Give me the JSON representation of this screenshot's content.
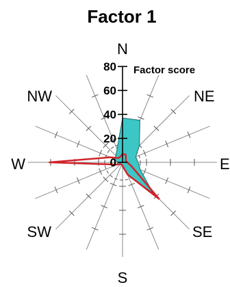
{
  "chart_data": {
    "type": "radar",
    "title": "Factor 1",
    "ylabel": "Factor score",
    "ylim": [
      0,
      80
    ],
    "radial_ticks": [
      80,
      60,
      40,
      20,
      0
    ],
    "directions": [
      "N",
      "NNE",
      "NE",
      "ENE",
      "E",
      "ESE",
      "SE",
      "SSE",
      "S",
      "SSW",
      "SW",
      "WSW",
      "W",
      "WNW",
      "NW",
      "NNW"
    ],
    "direction_labels": [
      "N",
      "NE",
      "E",
      "SE",
      "S",
      "SW",
      "W",
      "NW"
    ],
    "series": [
      {
        "name": "",
        "fill": "#3cc6c6",
        "values": [
          37,
          38,
          20,
          12,
          13,
          16,
          36,
          12,
          4,
          2,
          2,
          5,
          4,
          7,
          8,
          12
        ]
      },
      {
        "name": "",
        "line": "#d2232a",
        "values": [
          7,
          7,
          4,
          3,
          4,
          8,
          43,
          11,
          3,
          2,
          2,
          5,
          61,
          11,
          5,
          5
        ]
      }
    ]
  }
}
